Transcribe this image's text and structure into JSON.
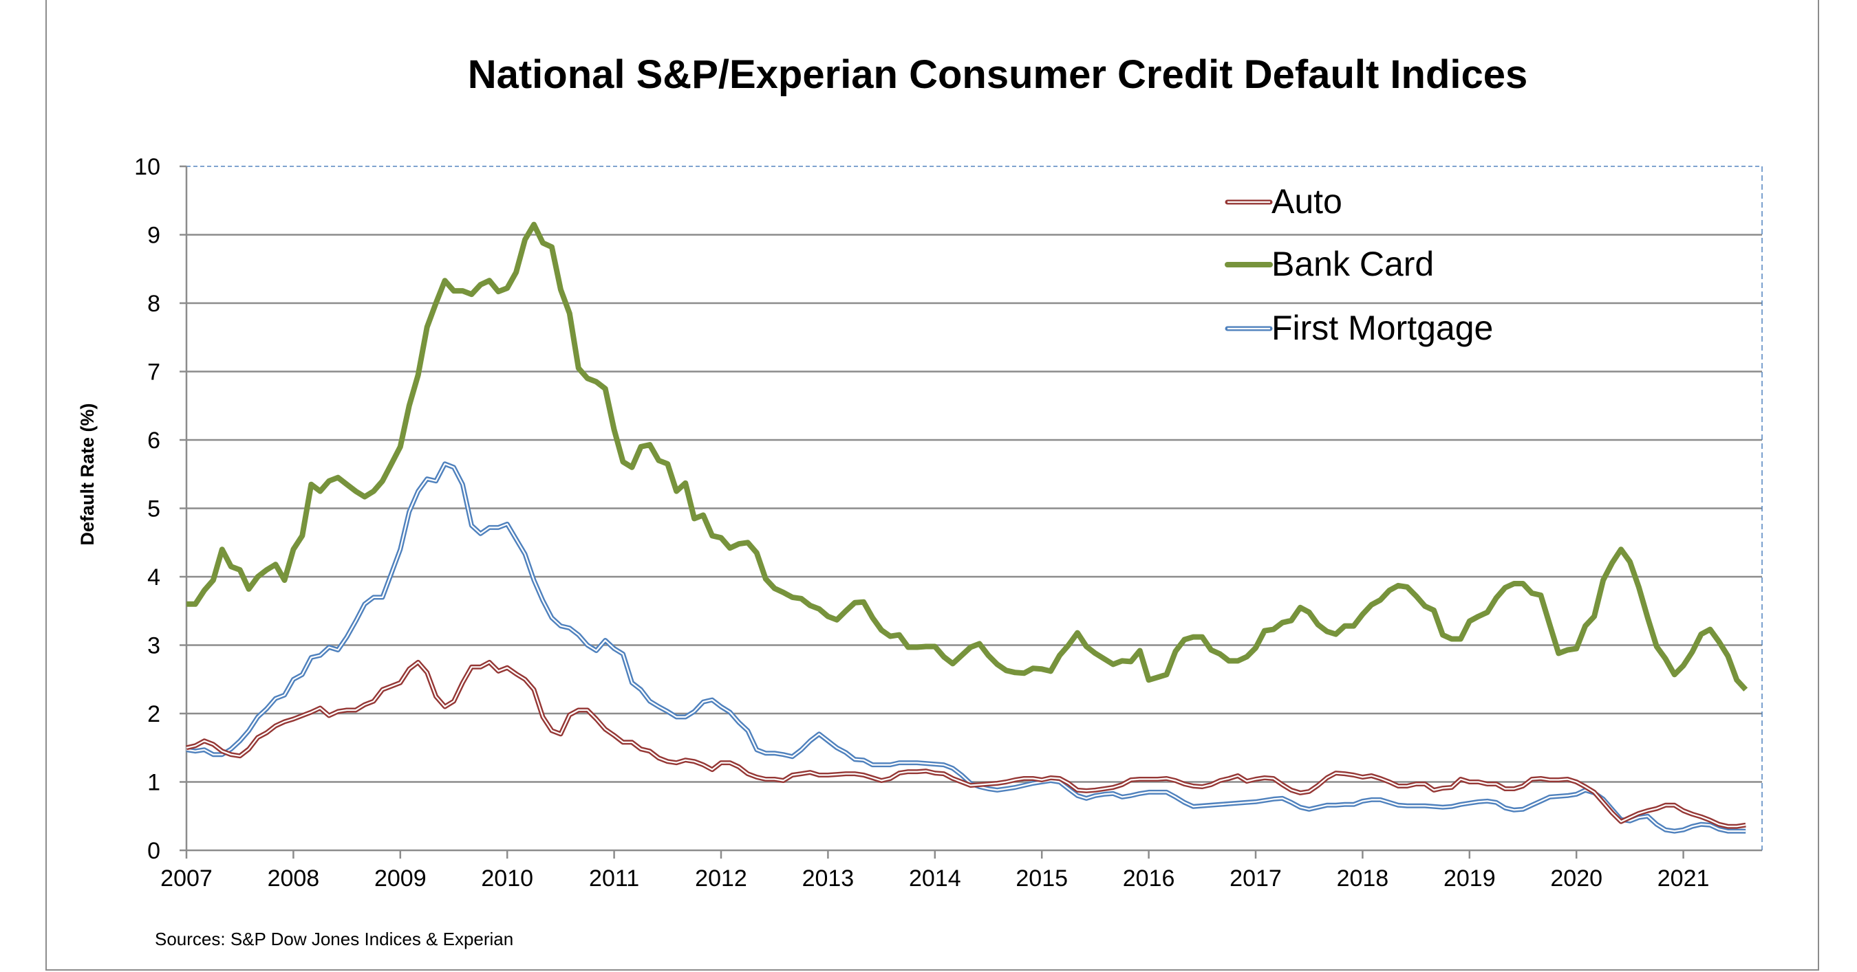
{
  "chart_data": {
    "type": "line",
    "title": "National S&P/Experian Consumer Credit Default Indices",
    "xlabel": "",
    "ylabel": "Default Rate (%)",
    "ylim": [
      0,
      10
    ],
    "yticks": [
      0,
      1,
      2,
      3,
      4,
      5,
      6,
      7,
      8,
      9,
      10
    ],
    "xticks": [
      "2007",
      "2008",
      "2009",
      "2010",
      "2011",
      "2012",
      "2013",
      "2014",
      "2015",
      "2016",
      "2017",
      "2018",
      "2019",
      "2020",
      "2021"
    ],
    "x_unit": "monthly values keyed by year (Jan onward)",
    "grid": "horizontal",
    "legend_position": "top-right",
    "source": "Sources: S&P Dow Jones Indices & Experian",
    "series": [
      {
        "name": "Auto",
        "color": "#953735",
        "style": "double-line",
        "values_by_year": {
          "2007": [
            1.5,
            1.53,
            1.6,
            1.55,
            1.45,
            1.4,
            1.38,
            1.48,
            1.65,
            1.72,
            1.82,
            1.88
          ],
          "2008": [
            1.92,
            1.97,
            2.02,
            2.08,
            1.97,
            2.03,
            2.05,
            2.05,
            2.13,
            2.18,
            2.35,
            2.4
          ],
          "2009": [
            2.45,
            2.65,
            2.75,
            2.6,
            2.25,
            2.1,
            2.18,
            2.45,
            2.68,
            2.68,
            2.75,
            2.62
          ],
          "2010": [
            2.67,
            2.58,
            2.5,
            2.35,
            1.95,
            1.75,
            1.7,
            1.98,
            2.05,
            2.05,
            1.92,
            1.77
          ],
          "2011": [
            1.68,
            1.58,
            1.58,
            1.48,
            1.45,
            1.35,
            1.3,
            1.28,
            1.32,
            1.3,
            1.25,
            1.18
          ],
          "2012": [
            1.28,
            1.28,
            1.22,
            1.12,
            1.07,
            1.04,
            1.04,
            1.02,
            1.1,
            1.12,
            1.14,
            1.1
          ],
          "2013": [
            1.1,
            1.11,
            1.12,
            1.12,
            1.1,
            1.06,
            1.02,
            1.05,
            1.13,
            1.15,
            1.15,
            1.16
          ],
          "2014": [
            1.13,
            1.12,
            1.05,
            1.0,
            0.95,
            0.96,
            0.97,
            0.98,
            1.0,
            1.03,
            1.05,
            1.05
          ],
          "2015": [
            1.03,
            1.06,
            1.05,
            0.98,
            0.88,
            0.87,
            0.88,
            0.9,
            0.92,
            0.96,
            1.03,
            1.04
          ],
          "2016": [
            1.04,
            1.04,
            1.05,
            1.02,
            0.97,
            0.94,
            0.93,
            0.96,
            1.02,
            1.05,
            1.09,
            1.01
          ],
          "2017": [
            1.04,
            1.06,
            1.05,
            0.96,
            0.88,
            0.84,
            0.86,
            0.95,
            1.06,
            1.13,
            1.12,
            1.1
          ],
          "2018": [
            1.07,
            1.09,
            1.05,
            1.0,
            0.94,
            0.94,
            0.97,
            0.97,
            0.88,
            0.91,
            0.92,
            1.04
          ],
          "2019": [
            1.0,
            1.0,
            0.97,
            0.97,
            0.9,
            0.9,
            0.94,
            1.04,
            1.05,
            1.03,
            1.03,
            1.04
          ],
          "2020": [
            1.0,
            0.93,
            0.85,
            0.7,
            0.55,
            0.42,
            0.48,
            0.54,
            0.58,
            0.61,
            0.66,
            0.66
          ],
          "2021": [
            0.58,
            0.53,
            0.49,
            0.44,
            0.38,
            0.35,
            0.35,
            0.37
          ]
        }
      },
      {
        "name": "Bank Card",
        "color": "#77933c",
        "style": "solid-thick",
        "values_by_year": {
          "2007": [
            3.6,
            3.6,
            3.8,
            3.95,
            4.4,
            4.15,
            4.1,
            3.82,
            4.0,
            4.1,
            4.18,
            3.95
          ],
          "2008": [
            4.4,
            4.6,
            5.35,
            5.25,
            5.4,
            5.45,
            5.35,
            5.25,
            5.17,
            5.25,
            5.4,
            5.65
          ],
          "2009": [
            5.9,
            6.5,
            6.95,
            7.65,
            8.0,
            8.33,
            8.18,
            8.18,
            8.13,
            8.27,
            8.33,
            8.17
          ],
          "2010": [
            8.22,
            8.45,
            8.93,
            9.15,
            8.88,
            8.82,
            8.2,
            7.85,
            7.05,
            6.9,
            6.85,
            6.75
          ],
          "2011": [
            6.15,
            5.68,
            5.6,
            5.9,
            5.93,
            5.7,
            5.65,
            5.25,
            5.37,
            4.85,
            4.9,
            4.6
          ],
          "2012": [
            4.57,
            4.42,
            4.48,
            4.5,
            4.35,
            3.97,
            3.83,
            3.77,
            3.7,
            3.68,
            3.58,
            3.53
          ],
          "2013": [
            3.42,
            3.37,
            3.5,
            3.62,
            3.63,
            3.4,
            3.22,
            3.13,
            3.15,
            2.97,
            2.97,
            2.98
          ],
          "2014": [
            2.98,
            2.83,
            2.73,
            2.85,
            2.97,
            3.02,
            2.85,
            2.72,
            2.63,
            2.6,
            2.59,
            2.66
          ],
          "2015": [
            2.65,
            2.62,
            2.85,
            3.0,
            3.18,
            2.98,
            2.88,
            2.8,
            2.72,
            2.77,
            2.76,
            2.92
          ],
          "2016": [
            2.49,
            2.53,
            2.57,
            2.91,
            3.08,
            3.12,
            3.12,
            2.93,
            2.87,
            2.77,
            2.77,
            2.83
          ],
          "2017": [
            2.96,
            3.21,
            3.23,
            3.33,
            3.36,
            3.55,
            3.48,
            3.3,
            3.2,
            3.16,
            3.28,
            3.28
          ],
          "2018": [
            3.45,
            3.59,
            3.66,
            3.8,
            3.87,
            3.85,
            3.72,
            3.57,
            3.51,
            3.15,
            3.09,
            3.09
          ],
          "2019": [
            3.35,
            3.42,
            3.48,
            3.69,
            3.84,
            3.9,
            3.9,
            3.76,
            3.73,
            3.3,
            2.88,
            2.93
          ],
          "2020": [
            2.95,
            3.28,
            3.42,
            3.95,
            4.2,
            4.4,
            4.22,
            3.85,
            3.4,
            2.98,
            2.8,
            2.57
          ],
          "2021": [
            2.7,
            2.9,
            3.16,
            3.23,
            3.05,
            2.84,
            2.49,
            2.35
          ]
        }
      },
      {
        "name": "First Mortgage",
        "color": "#4f81bd",
        "style": "double-line",
        "values_by_year": {
          "2007": [
            1.47,
            1.45,
            1.47,
            1.4,
            1.4,
            1.48,
            1.6,
            1.75,
            1.95,
            2.07,
            2.22,
            2.27
          ],
          "2008": [
            2.5,
            2.57,
            2.82,
            2.85,
            2.97,
            2.93,
            3.12,
            3.35,
            3.6,
            3.7,
            3.7,
            4.05
          ],
          "2009": [
            4.4,
            4.95,
            5.25,
            5.43,
            5.4,
            5.65,
            5.6,
            5.35,
            4.75,
            4.63,
            4.72,
            4.72
          ],
          "2010": [
            4.77,
            4.55,
            4.33,
            3.95,
            3.65,
            3.4,
            3.28,
            3.25,
            3.15,
            3.0,
            2.92,
            3.07
          ],
          "2011": [
            2.95,
            2.87,
            2.45,
            2.35,
            2.18,
            2.1,
            2.03,
            1.95,
            1.95,
            2.03,
            2.17,
            2.2
          ],
          "2012": [
            2.1,
            2.02,
            1.87,
            1.75,
            1.47,
            1.42,
            1.42,
            1.4,
            1.37,
            1.47,
            1.6,
            1.7
          ],
          "2013": [
            1.6,
            1.5,
            1.43,
            1.33,
            1.32,
            1.25,
            1.25,
            1.25,
            1.28,
            1.28,
            1.28,
            1.27
          ],
          "2014": [
            1.26,
            1.25,
            1.2,
            1.1,
            0.98,
            0.93,
            0.9,
            0.88,
            0.9,
            0.92,
            0.95,
            0.98
          ],
          "2015": [
            1.0,
            1.02,
            1.0,
            0.9,
            0.8,
            0.76,
            0.8,
            0.82,
            0.83,
            0.78,
            0.8,
            0.83
          ],
          "2016": [
            0.85,
            0.85,
            0.85,
            0.78,
            0.7,
            0.64,
            0.65,
            0.66,
            0.67,
            0.68,
            0.69,
            0.7
          ],
          "2017": [
            0.71,
            0.73,
            0.75,
            0.76,
            0.7,
            0.63,
            0.6,
            0.63,
            0.66,
            0.66,
            0.67,
            0.67
          ],
          "2018": [
            0.72,
            0.74,
            0.74,
            0.7,
            0.66,
            0.65,
            0.65,
            0.65,
            0.64,
            0.63,
            0.64,
            0.67
          ],
          "2019": [
            0.69,
            0.71,
            0.72,
            0.7,
            0.62,
            0.59,
            0.6,
            0.66,
            0.72,
            0.78,
            0.79,
            0.8
          ],
          "2020": [
            0.82,
            0.88,
            0.84,
            0.75,
            0.6,
            0.45,
            0.43,
            0.48,
            0.5,
            0.38,
            0.3,
            0.28
          ],
          "2021": [
            0.3,
            0.35,
            0.38,
            0.37,
            0.31,
            0.28,
            0.28,
            0.28
          ]
        }
      }
    ]
  }
}
